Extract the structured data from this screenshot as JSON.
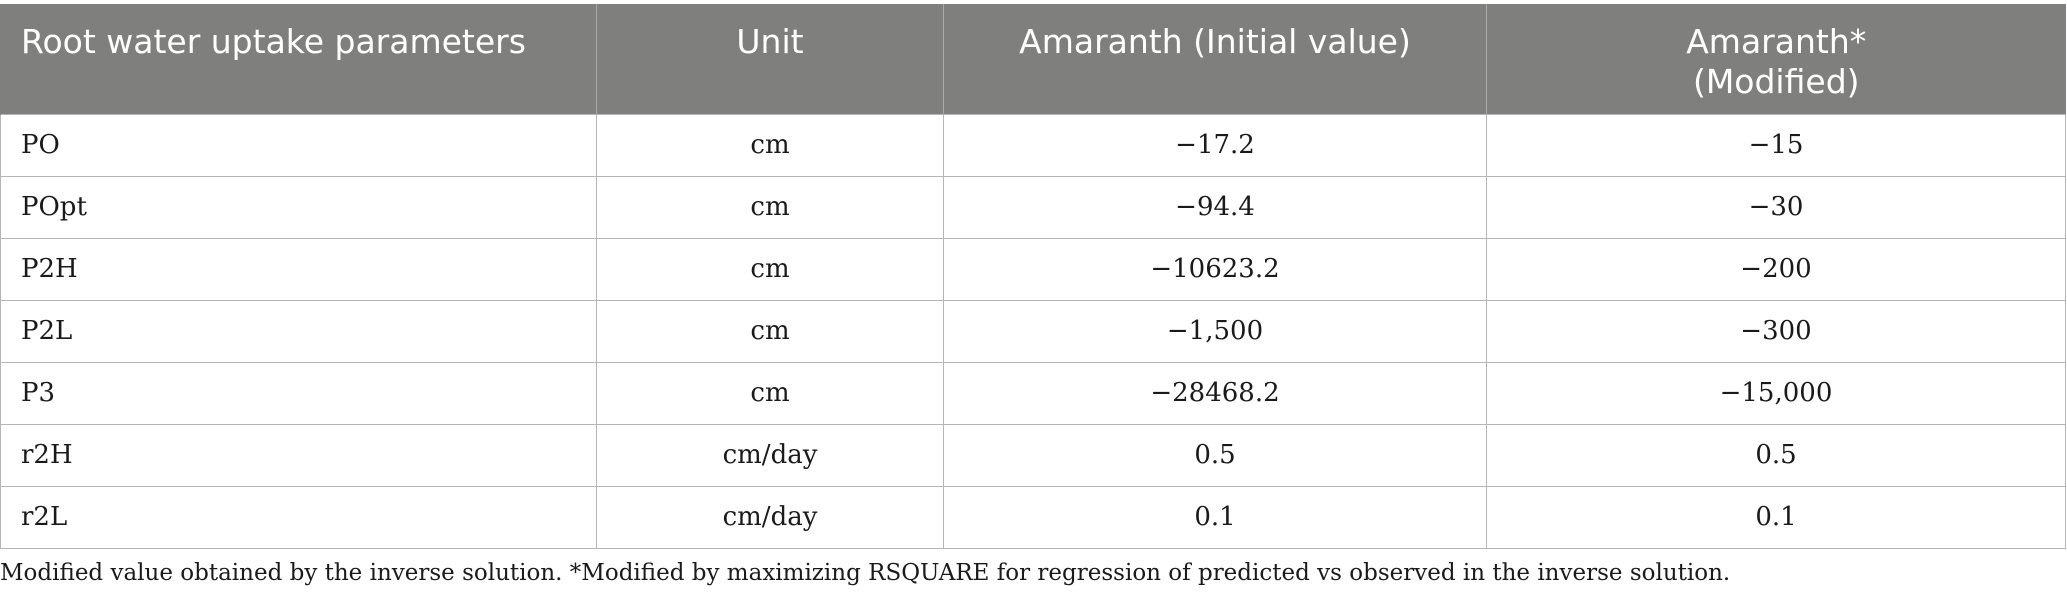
{
  "table": {
    "headers": [
      "Root water uptake parameters",
      "Unit",
      "Amaranth (Initial value)",
      "Amaranth*",
      "(Modified)"
    ],
    "rows": [
      {
        "param": "PO",
        "unit": "cm",
        "initial": "−17.2",
        "modified": "−15"
      },
      {
        "param": "POpt",
        "unit": "cm",
        "initial": "−94.4",
        "modified": "−30"
      },
      {
        "param": "P2H",
        "unit": "cm",
        "initial": "−10623.2",
        "modified": "−200"
      },
      {
        "param": "P2L",
        "unit": "cm",
        "initial": "−1,500",
        "modified": "−300"
      },
      {
        "param": "P3",
        "unit": "cm",
        "initial": "−28468.2",
        "modified": "−15,000"
      },
      {
        "param": "r2H",
        "unit": "cm/day",
        "initial": "0.5",
        "modified": "0.5"
      },
      {
        "param": "r2L",
        "unit": "cm/day",
        "initial": "0.1",
        "modified": "0.1"
      }
    ]
  },
  "footnote": "Modified value obtained by the inverse solution. *Modified by maximizing RSQUARE for regression of predicted vs observed in the inverse solution.",
  "colors": {
    "header_bg": "#7f807e",
    "header_text": "#ffffff",
    "grid": "#b5b5b5"
  }
}
